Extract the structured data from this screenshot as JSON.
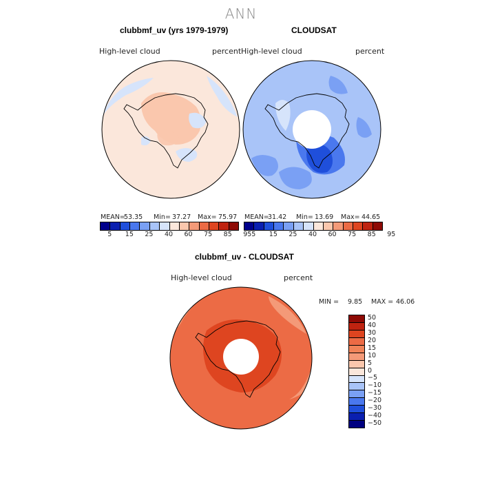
{
  "title": "ANN",
  "chart_data": [
    {
      "type": "heatmap",
      "title": "clubbmf_uv (yrs 1979-1979)",
      "left_label": "High-level cloud",
      "right_label": "percent",
      "projection": "south polar stereographic",
      "stats": {
        "mean_label": "MEAN=",
        "mean": "53.35",
        "min_label": "Min=",
        "min": "37.27",
        "max_label": "Max=",
        "max": "75.97"
      },
      "levels": [
        "5",
        "15",
        "25",
        "40",
        "60",
        "75",
        "85",
        "95"
      ],
      "colors": [
        "#00008b",
        "#0a1fb0",
        "#1f4fdb",
        "#4a78ee",
        "#7aa0f4",
        "#a9c4f8",
        "#d6e4fb",
        "#fbe7db",
        "#fac7ad",
        "#f49a78",
        "#ec6b45",
        "#de4520",
        "#bf2310",
        "#8e0a05"
      ],
      "regions": [
        {
          "name": "background",
          "value": 62,
          "color": "#fbe7db"
        },
        {
          "name": "interior-ice",
          "value": 66,
          "color": "#fac7ad"
        },
        {
          "name": "interior-low",
          "value": 45,
          "color": "#d6e4fb"
        }
      ]
    },
    {
      "type": "heatmap",
      "title": "CLOUDSAT",
      "left_label": "High-level cloud",
      "right_label": "percent",
      "projection": "south polar stereographic",
      "stats": {
        "mean_label": "MEAN=",
        "mean": "31.42",
        "min_label": "Min=",
        "min": "13.69",
        "max_label": "Max=",
        "max": "44.65"
      },
      "levels": [
        "5",
        "15",
        "25",
        "40",
        "60",
        "75",
        "85",
        "95"
      ],
      "colors": [
        "#00008b",
        "#0a1fb0",
        "#1f4fdb",
        "#4a78ee",
        "#7aa0f4",
        "#a9c4f8",
        "#d6e4fb",
        "#fbe7db",
        "#fac7ad",
        "#f49a78",
        "#ec6b45",
        "#de4520",
        "#bf2310",
        "#8e0a05"
      ],
      "regions": [
        {
          "name": "background",
          "value": 33,
          "color": "#a9c4f8"
        },
        {
          "name": "low-patches",
          "value": 27,
          "color": "#7aa0f4"
        },
        {
          "name": "west-antarctica-low",
          "value": 18,
          "color": "#1f4fdb"
        },
        {
          "name": "missing-pole",
          "value": null,
          "color": "#ffffff"
        }
      ]
    },
    {
      "type": "heatmap",
      "title": "clubbmf_uv - CLOUDSAT",
      "left_label": "High-level cloud",
      "right_label": "percent",
      "projection": "south polar stereographic",
      "stats": {
        "min_label": "MIN =",
        "min": "9.85",
        "max_label": "MAX =",
        "max": "46.06"
      },
      "levels": [
        "50",
        "40",
        "30",
        "20",
        "15",
        "10",
        "5",
        "0",
        "−5",
        "−10",
        "−15",
        "−20",
        "−30",
        "−40",
        "−50"
      ],
      "colors": [
        "#8e0a05",
        "#bf2310",
        "#de4520",
        "#ec6b45",
        "#f08358",
        "#f49a78",
        "#fac7ad",
        "#fbe7db",
        "#d6e4fb",
        "#a9c4f8",
        "#7aa0f4",
        "#4a78ee",
        "#1f4fdb",
        "#0a1fb0",
        "#000080"
      ],
      "regions": [
        {
          "name": "background",
          "value": 25,
          "color": "#ec6b45"
        },
        {
          "name": "outer-ring-low",
          "value": 17,
          "color": "#f49a78"
        },
        {
          "name": "inner-high",
          "value": 32,
          "color": "#de4520"
        },
        {
          "name": "missing-pole",
          "value": null,
          "color": "#ffffff"
        }
      ]
    }
  ]
}
